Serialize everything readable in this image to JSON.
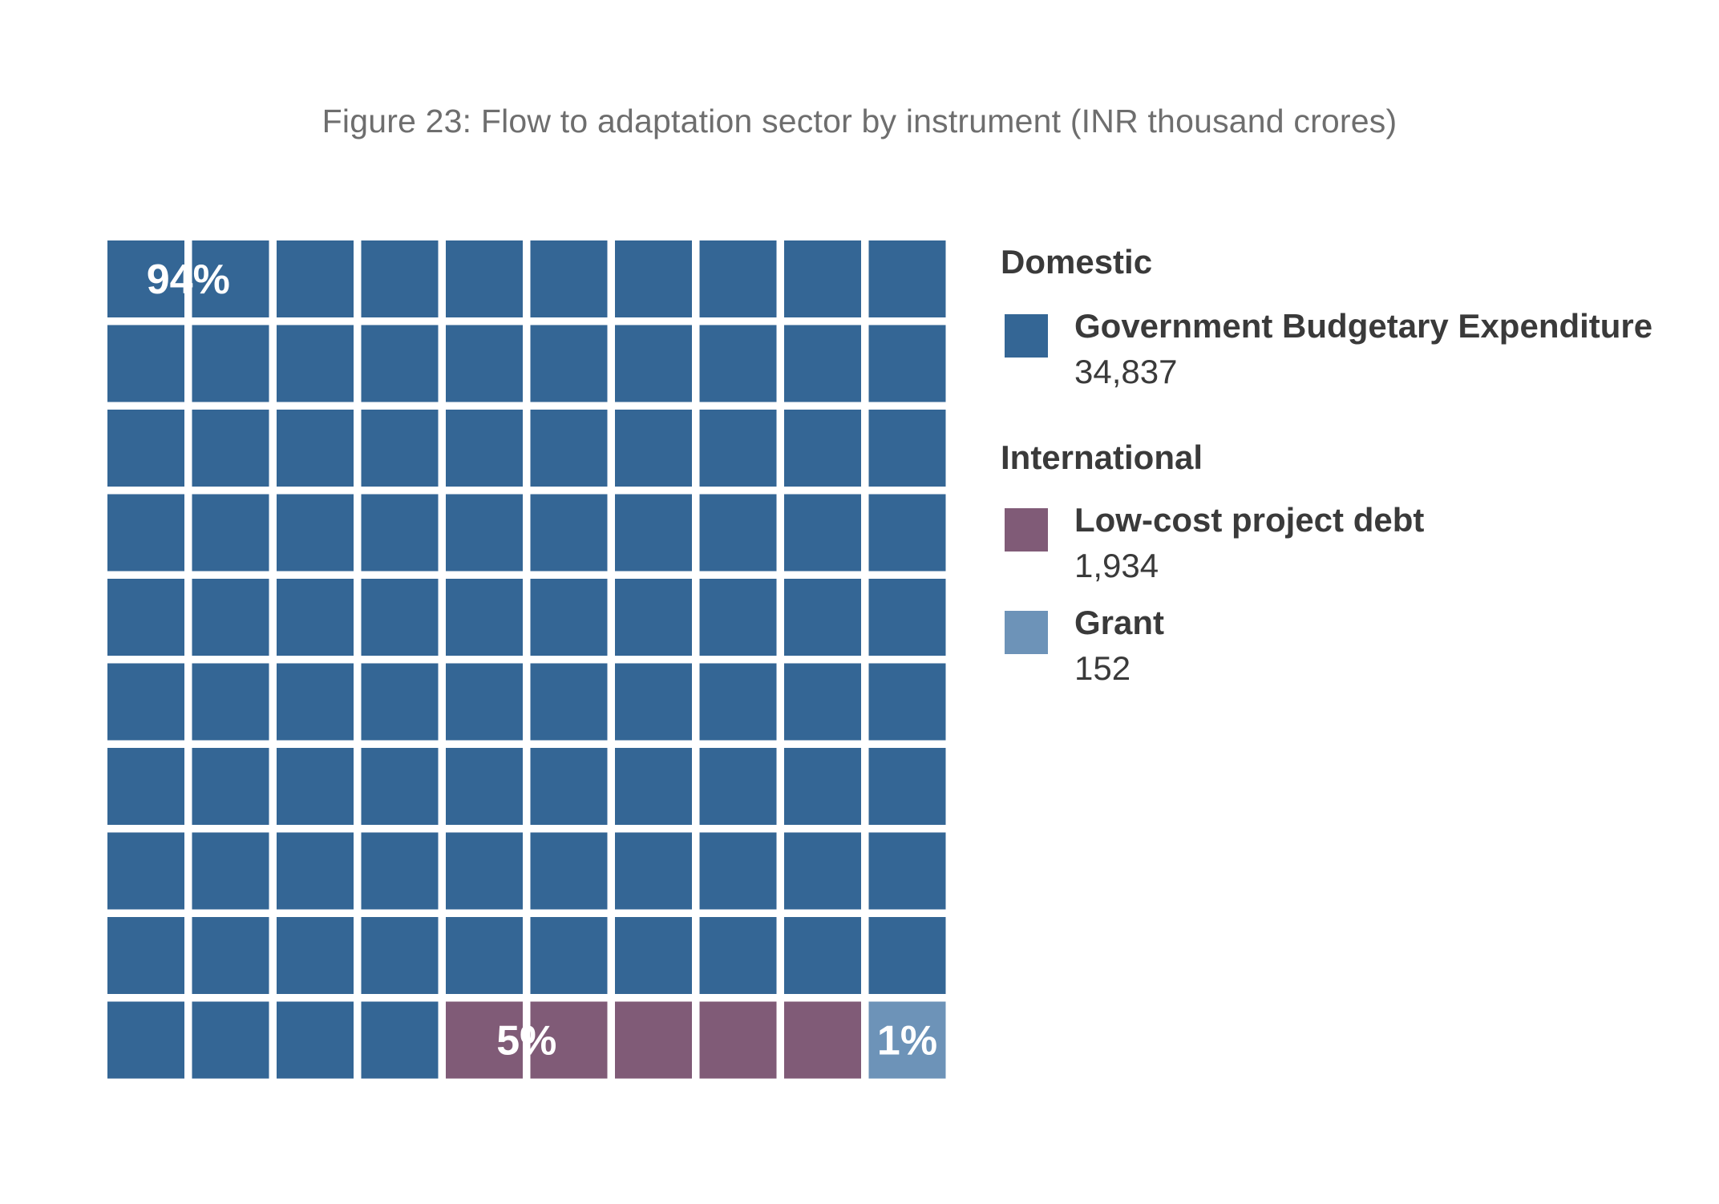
{
  "title": "Figure 23: Flow to adaptation sector by instrument (INR thousand crores)",
  "chart_data": {
    "type": "waffle",
    "title": "Figure 23: Flow to adaptation sector by instrument (INR thousand crores)",
    "grid": {
      "rows": 10,
      "cols": 10
    },
    "groups": [
      {
        "name": "Domestic",
        "items": [
          {
            "name": "Government Budgetary Expenditure",
            "value": 34837,
            "value_label": "34,837",
            "percent": 94,
            "percent_label": "94%",
            "cells": 94,
            "color": "#346695"
          }
        ]
      },
      {
        "name": "International",
        "items": [
          {
            "name": "Low-cost project debt",
            "value": 1934,
            "value_label": "1,934",
            "percent": 5,
            "percent_label": "5%",
            "cells": 5,
            "color": "#805b77"
          },
          {
            "name": "Grant",
            "value": 152,
            "value_label": "152",
            "percent": 1,
            "percent_label": "1%",
            "cells": 1,
            "color": "#6d93b8"
          }
        ]
      }
    ]
  }
}
